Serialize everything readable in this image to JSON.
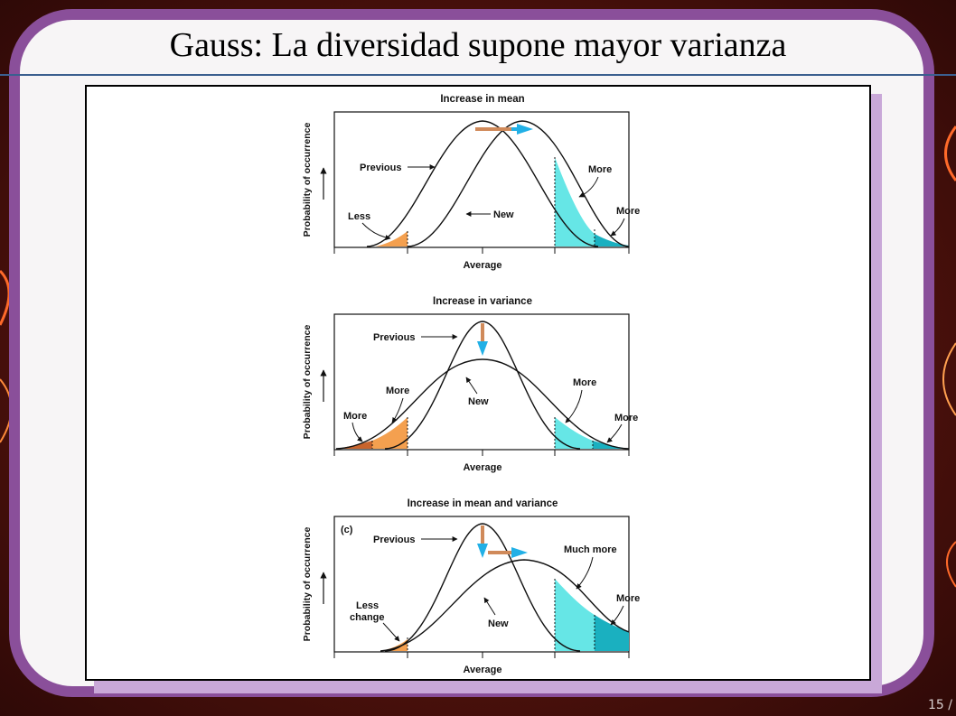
{
  "slide": {
    "title": "Gauss: La diversidad supone mayor varianza",
    "page_number": "15 /"
  },
  "colors": {
    "frame": "#8a4f9a",
    "title_rule": "#3b5f8f",
    "shadow": "#c9a8d8",
    "orange": "#f4a04f",
    "dark_orange": "#c8642c",
    "light_cyan": "#66e6e6",
    "teal": "#1ab0c0",
    "arrow_blue": "#22b0e6"
  },
  "figure": {
    "panels": [
      {
        "title": "Increase in mean",
        "y_label": "Probability of occurrence",
        "x_label": "Average",
        "labels": {
          "previous": "Previous",
          "new": "New",
          "left_tail": "Less",
          "right_inner": "More",
          "right_outer": "More"
        }
      },
      {
        "title": "Increase in variance",
        "y_label": "Probability of occurrence",
        "x_label": "Average",
        "labels": {
          "previous": "Previous",
          "new": "New",
          "left_outer": "More",
          "left_inner": "More",
          "right_inner": "More",
          "right_outer": "More"
        }
      },
      {
        "title": "Increase in mean and variance",
        "panel_tag": "(c)",
        "y_label": "Probability of occurrence",
        "x_label": "Average",
        "labels": {
          "previous": "Previous",
          "new": "New",
          "left_tail_line1": "Less",
          "left_tail_line2": "change",
          "right_inner": "Much more",
          "right_outer": "More"
        }
      }
    ]
  }
}
